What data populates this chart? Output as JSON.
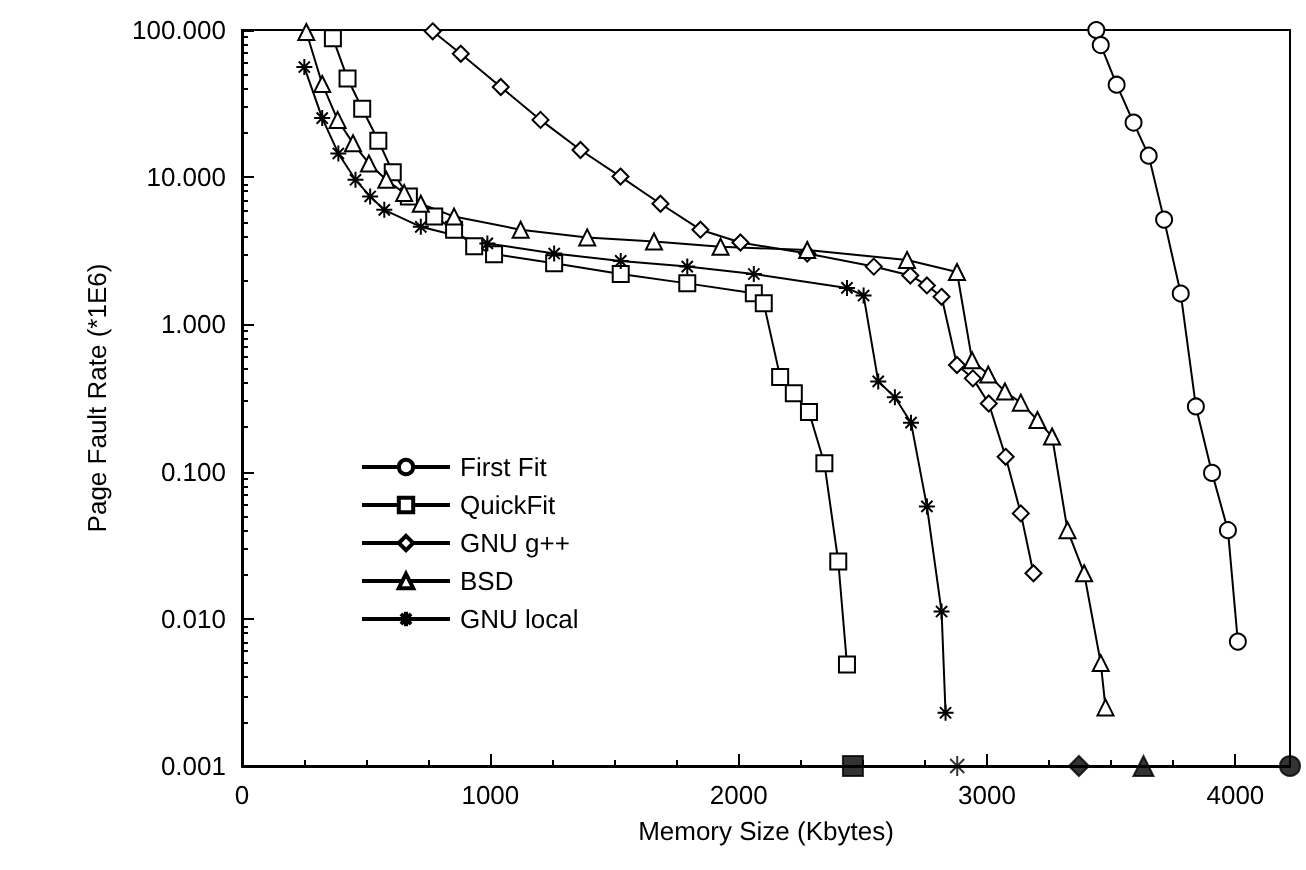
{
  "chart_data": {
    "type": "line",
    "xlabel": "Memory Size (Kbytes)",
    "ylabel": "Page Fault Rate (*1E6)",
    "log": "y",
    "grid": false,
    "legend": "left",
    "line_style": "solid",
    "xlim": [
      0,
      4220
    ],
    "xticks": [
      0,
      1000,
      2000,
      3000,
      4000
    ],
    "ylim": [
      0.001,
      100
    ],
    "yticks": [
      {
        "value": 0.001,
        "label": "0.001"
      },
      {
        "value": 0.01,
        "label": "0.010"
      },
      {
        "value": 0.1,
        "label": "0.100"
      },
      {
        "value": 1,
        "label": "1.000"
      },
      {
        "value": 10,
        "label": "10.000"
      },
      {
        "value": 100,
        "label": "100.000"
      }
    ],
    "series": [
      {
        "name": "First Fit",
        "color": "#000000",
        "marker": "circle",
        "x": [
          3440,
          3458,
          3522,
          3590,
          3651,
          3713,
          3780,
          3841,
          3906,
          3970,
          4010
        ],
        "values": [
          100,
          79,
          42.5,
          23.5,
          14,
          5.15,
          1.62,
          0.277,
          0.098,
          0.04,
          0.007
        ]
      },
      {
        "name": "QuickFit",
        "color": "#000000",
        "marker": "square",
        "x": [
          366,
          425,
          484,
          549,
          607,
          672,
          774,
          854,
          935,
          1015,
          1257,
          1525,
          1793,
          2061,
          2101,
          2167,
          2222,
          2283,
          2345,
          2401,
          2436
        ],
        "values": [
          88,
          46.8,
          29.2,
          17.7,
          10.8,
          7.4,
          5.4,
          4.4,
          3.4,
          3.0,
          2.6,
          2.2,
          1.9,
          1.63,
          1.39,
          0.44,
          0.34,
          0.254,
          0.114,
          0.0245,
          0.0049
        ]
      },
      {
        "name": "GNU g++",
        "color": "#000000",
        "marker": "diamond",
        "x": [
          768,
          881,
          1042,
          1202,
          1363,
          1524,
          1685,
          1846,
          2007,
          2276,
          2544,
          2691,
          2758,
          2817,
          2879,
          2943,
          3007,
          3075,
          3136,
          3187
        ],
        "values": [
          98,
          69,
          41,
          24.5,
          15.3,
          10.1,
          6.6,
          4.4,
          3.6,
          3.03,
          2.47,
          2.15,
          1.84,
          1.54,
          0.53,
          0.43,
          0.29,
          0.126,
          0.052,
          0.0204
        ]
      },
      {
        "name": "BSD",
        "color": "#000000",
        "marker": "triangle",
        "x": [
          259,
          323,
          385,
          447,
          511,
          581,
          653,
          720,
          854,
          1122,
          1390,
          1659,
          1927,
          2276,
          2678,
          2879,
          2940,
          3005,
          3072,
          3136,
          3203,
          3262,
          3324,
          3391,
          3458,
          3477
        ],
        "values": [
          97,
          43,
          24.5,
          17,
          12.4,
          9.6,
          7.8,
          6.6,
          5.4,
          4.4,
          3.9,
          3.66,
          3.37,
          3.2,
          2.74,
          2.27,
          0.57,
          0.456,
          0.35,
          0.294,
          0.224,
          0.173,
          0.04,
          0.0204,
          0.005,
          0.0025
        ]
      },
      {
        "name": "GNU local",
        "color": "#000000",
        "marker": "cross",
        "x": [
          251,
          323,
          388,
          457,
          516,
          573,
          720,
          988,
          1257,
          1525,
          1793,
          2061,
          2436,
          2503,
          2562,
          2629,
          2694,
          2758,
          2817,
          2833
        ],
        "values": [
          56,
          25.2,
          14.5,
          9.6,
          7.4,
          6.0,
          4.6,
          3.55,
          3.03,
          2.7,
          2.47,
          2.2,
          1.77,
          1.57,
          0.41,
          0.32,
          0.215,
          0.058,
          0.0112,
          0.0023
        ]
      },
      {
        "type": "scatter",
        "color": "#000000",
        "marker": "square",
        "x": [
          2460
        ],
        "values": [
          0.001
        ]
      },
      {
        "type": "scatter",
        "color": "#000000",
        "marker": "cross",
        "x": [
          2880
        ],
        "values": [
          0.001
        ]
      },
      {
        "type": "scatter",
        "color": "#000000",
        "marker": "diamond",
        "x": [
          3370
        ],
        "values": [
          0.001
        ]
      },
      {
        "type": "scatter",
        "color": "#000000",
        "marker": "triangle",
        "x": [
          3630
        ],
        "values": [
          0.001
        ]
      },
      {
        "type": "scatter",
        "color": "#000000",
        "marker": "circle",
        "x": [
          4220
        ],
        "values": [
          0.001
        ]
      }
    ]
  }
}
